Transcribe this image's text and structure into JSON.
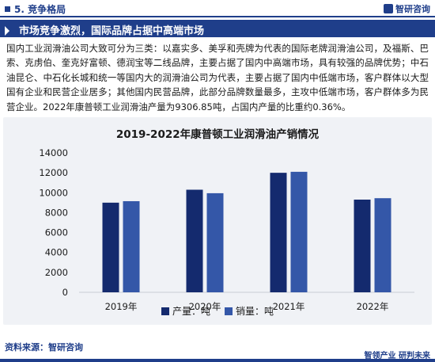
{
  "header": {
    "section": "5. 竞争格局",
    "brand": "智研咨询"
  },
  "headline": "市场竞争激烈，国际品牌占据中高端市场",
  "paragraph": "国内工业润滑油公司大致可分为三类：以嘉实多、美孚和壳牌为代表的国际老牌润滑油公司，及福斯、巴索、克虏伯、奎克好富顿、德润宝等二线品牌，主要占据了国内中高端市场，具有较强的品牌优势；中石油昆仑、中石化长城和统一等国内大的润滑油公司为代表，主要占据了国内中低端市场，客户群体以大型国有企业和民营企业居多；其他国内民营品牌，此部分品牌数量最多，主攻中低端市场，客户群体多为民营企业。2022年康普顿工业润滑油产量为9306.85吨，占国内产量的比重约0.36%。",
  "footer": {
    "source": "资料来源：智研咨询",
    "slogan": "智领产业  研判未来"
  },
  "colors": {
    "navy": "#1f3e8a",
    "production": "#142a6e",
    "sales": "#3457a8"
  },
  "chart_data": {
    "type": "bar",
    "title": "2019-2022年康普顿工业润滑油产销情况",
    "categories": [
      "2019年",
      "2020年",
      "2021年",
      "2022年"
    ],
    "series": [
      {
        "name": "产量：吨",
        "values": [
          9000,
          10300,
          12000,
          9307
        ]
      },
      {
        "name": "销量：吨",
        "values": [
          9150,
          9950,
          12100,
          9450
        ]
      }
    ],
    "ylim": [
      0,
      14000
    ],
    "yticks": [
      0,
      2000,
      4000,
      6000,
      8000,
      10000,
      12000,
      14000
    ],
    "grid": false,
    "legend": "bottom"
  }
}
